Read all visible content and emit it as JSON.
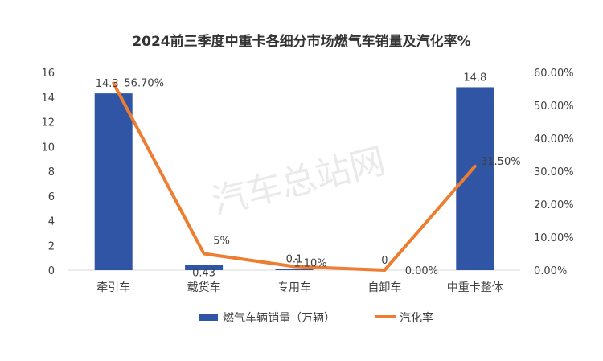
{
  "chart_data": {
    "type": "bar+line",
    "title": "2024前三季度中重卡各细分市场燃气车销量及汽化率%",
    "watermark": "汽车总站网",
    "categories": [
      "牵引车",
      "载货车",
      "专用车",
      "自卸车",
      "中重卡整体"
    ],
    "series": [
      {
        "name": "燃气车辆销量（万辆）",
        "type": "bar",
        "axis": "left",
        "color": "#2f55a4",
        "values": [
          14.3,
          0.43,
          0.1,
          0,
          14.8
        ],
        "labels": [
          "14.3",
          "0.43",
          "0.1",
          "0",
          "14.8"
        ]
      },
      {
        "name": "汽化率",
        "type": "line",
        "axis": "right",
        "color": "#ed7d31",
        "values": [
          56.7,
          5,
          1.1,
          0,
          31.5
        ],
        "labels": [
          "56.70%",
          "5%",
          "1.10%",
          "0.00%",
          "31.50%"
        ]
      }
    ],
    "y_left": {
      "min": 0,
      "max": 16,
      "ticks": [
        "0",
        "2",
        "4",
        "6",
        "8",
        "10",
        "12",
        "14",
        "16"
      ]
    },
    "y_right": {
      "min": 0,
      "max": 60,
      "ticks": [
        "0.00%",
        "10.00%",
        "20.00%",
        "30.00%",
        "40.00%",
        "50.00%",
        "60.00%"
      ]
    },
    "legend_position": "bottom",
    "grid": false
  }
}
